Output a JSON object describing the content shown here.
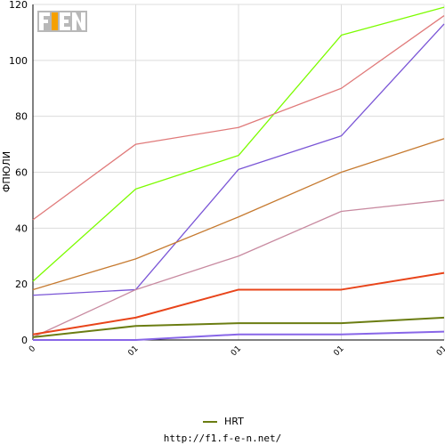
{
  "logo": {
    "text": "F1EN"
  },
  "footer": {
    "url": "http://f1.f-e-n.net/"
  },
  "legend": {
    "label": "HRT",
    "color": "#6b7d12"
  },
  "chart_data": {
    "type": "line",
    "title": "",
    "xlabel": "",
    "ylabel": "ФПЮЛИ",
    "ylim": [
      0,
      120
    ],
    "yticks": [
      0,
      20,
      40,
      60,
      80,
      100,
      120
    ],
    "categories": [
      "0",
      "01",
      "01",
      "01",
      "01"
    ],
    "grid": true,
    "legend_position": "bottom",
    "series": [
      {
        "color": "#7cfc00",
        "values": [
          21,
          54,
          66,
          109,
          119
        ]
      },
      {
        "color": "#e07a7a",
        "values": [
          43,
          70,
          76,
          90,
          116
        ]
      },
      {
        "color": "#7a55d6",
        "values": [
          16,
          18,
          61,
          73,
          113
        ]
      },
      {
        "color": "#c67a30",
        "values": [
          18,
          29,
          44,
          60,
          72
        ]
      },
      {
        "color": "#c88aa0",
        "values": [
          1,
          18,
          30,
          46,
          50
        ]
      },
      {
        "color": "#e8441a",
        "values": [
          2,
          8,
          18,
          18,
          24
        ]
      },
      {
        "name": "HRT",
        "color": "#6b7d12",
        "values": [
          1,
          5,
          6,
          6,
          8
        ]
      },
      {
        "color": "#8866e8",
        "values": [
          0,
          0,
          2,
          2,
          3
        ]
      }
    ]
  }
}
